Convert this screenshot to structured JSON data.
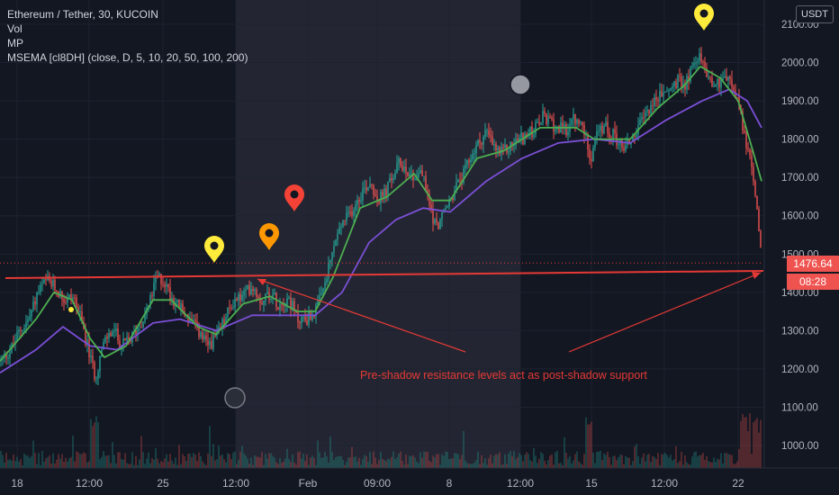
{
  "legend": {
    "symbol": "Ethereum / Tether, 30, KUCOIN",
    "vol": "Vol",
    "mp": "MP",
    "msema": "MSEMA [cl8DH] (close, D, 5, 10, 20, 50, 100, 200)"
  },
  "currency": "USDT",
  "annotation": "Pre-shadow resistance levels act as post-shadow support",
  "price_badge": "1476.64",
  "countdown_badge": "08:28",
  "colors": {
    "background": "#131722",
    "shaded": "#232632",
    "bull": "#26a69a",
    "bear": "#ef5350",
    "ema_fast": "#4caf50",
    "ema_slow": "#7b4fd6",
    "annotation": "#e53935",
    "marker_yellow": "#ffeb3b",
    "marker_orange": "#ff9800",
    "marker_red": "#f44336"
  },
  "chart_data": {
    "type": "candlestick",
    "title": "Ethereum / Tether, 30, KUCOIN",
    "ylabel": "USDT",
    "ylim": [
      940,
      2130
    ],
    "y_ticks": [
      "1000.00",
      "1100.00",
      "1200.00",
      "1300.00",
      "1400.00",
      "1500.00",
      "1600.00",
      "1700.00",
      "1800.00",
      "1900.00",
      "2000.00",
      "2100.00"
    ],
    "x_ticks": [
      "18",
      "12:00",
      "25",
      "12:00",
      "Feb",
      "09:00",
      "8",
      "12:00",
      "15",
      "12:00",
      "22"
    ],
    "last_price": 1476.64,
    "resistance_support_level": 1460,
    "close_path": [
      [
        0,
        1220
      ],
      [
        12,
        1250
      ],
      [
        22,
        1300
      ],
      [
        32,
        1330
      ],
      [
        42,
        1400
      ],
      [
        52,
        1430
      ],
      [
        62,
        1410
      ],
      [
        72,
        1380
      ],
      [
        82,
        1390
      ],
      [
        92,
        1310
      ],
      [
        100,
        1230
      ],
      [
        106,
        1180
      ],
      [
        112,
        1240
      ],
      [
        118,
        1280
      ],
      [
        126,
        1300
      ],
      [
        136,
        1260
      ],
      [
        146,
        1280
      ],
      [
        156,
        1320
      ],
      [
        166,
        1370
      ],
      [
        174,
        1440
      ],
      [
        182,
        1430
      ],
      [
        190,
        1390
      ],
      [
        200,
        1360
      ],
      [
        210,
        1330
      ],
      [
        220,
        1300
      ],
      [
        230,
        1260
      ],
      [
        240,
        1280
      ],
      [
        250,
        1330
      ],
      [
        260,
        1380
      ],
      [
        270,
        1390
      ],
      [
        280,
        1420
      ],
      [
        290,
        1380
      ],
      [
        300,
        1400
      ],
      [
        310,
        1370
      ],
      [
        320,
        1390
      ],
      [
        330,
        1330
      ],
      [
        340,
        1330
      ],
      [
        350,
        1350
      ],
      [
        356,
        1380
      ],
      [
        364,
        1450
      ],
      [
        372,
        1530
      ],
      [
        380,
        1580
      ],
      [
        388,
        1600
      ],
      [
        396,
        1640
      ],
      [
        404,
        1670
      ],
      [
        412,
        1690
      ],
      [
        420,
        1640
      ],
      [
        428,
        1660
      ],
      [
        436,
        1700
      ],
      [
        444,
        1740
      ],
      [
        452,
        1720
      ],
      [
        460,
        1700
      ],
      [
        468,
        1720
      ],
      [
        476,
        1640
      ],
      [
        484,
        1570
      ],
      [
        492,
        1600
      ],
      [
        500,
        1640
      ],
      [
        508,
        1680
      ],
      [
        516,
        1710
      ],
      [
        524,
        1760
      ],
      [
        532,
        1790
      ],
      [
        540,
        1820
      ],
      [
        548,
        1780
      ],
      [
        556,
        1760
      ],
      [
        566,
        1780
      ],
      [
        576,
        1800
      ],
      [
        586,
        1810
      ],
      [
        596,
        1830
      ],
      [
        604,
        1860
      ],
      [
        612,
        1840
      ],
      [
        620,
        1830
      ],
      [
        628,
        1820
      ],
      [
        636,
        1850
      ],
      [
        644,
        1840
      ],
      [
        652,
        1800
      ],
      [
        656,
        1750
      ],
      [
        662,
        1810
      ],
      [
        672,
        1830
      ],
      [
        682,
        1810
      ],
      [
        692,
        1780
      ],
      [
        702,
        1800
      ],
      [
        712,
        1840
      ],
      [
        720,
        1880
      ],
      [
        728,
        1900
      ],
      [
        736,
        1920
      ],
      [
        744,
        1930
      ],
      [
        752,
        1950
      ],
      [
        760,
        1940
      ],
      [
        768,
        1980
      ],
      [
        774,
        2020
      ],
      [
        780,
        2000
      ],
      [
        788,
        1960
      ],
      [
        796,
        1940
      ],
      [
        804,
        1970
      ],
      [
        810,
        1950
      ],
      [
        816,
        1920
      ],
      [
        822,
        1880
      ],
      [
        828,
        1800
      ],
      [
        834,
        1730
      ],
      [
        838,
        1690
      ],
      [
        842,
        1590
      ],
      [
        846,
        1476.64
      ]
    ],
    "ema_fast": [
      [
        0,
        1220
      ],
      [
        40,
        1330
      ],
      [
        60,
        1400
      ],
      [
        80,
        1380
      ],
      [
        100,
        1280
      ],
      [
        116,
        1230
      ],
      [
        140,
        1260
      ],
      [
        170,
        1380
      ],
      [
        190,
        1380
      ],
      [
        220,
        1310
      ],
      [
        240,
        1290
      ],
      [
        270,
        1370
      ],
      [
        300,
        1390
      ],
      [
        330,
        1350
      ],
      [
        350,
        1350
      ],
      [
        370,
        1440
      ],
      [
        400,
        1620
      ],
      [
        430,
        1650
      ],
      [
        460,
        1710
      ],
      [
        480,
        1640
      ],
      [
        500,
        1640
      ],
      [
        530,
        1750
      ],
      [
        560,
        1770
      ],
      [
        600,
        1830
      ],
      [
        640,
        1830
      ],
      [
        660,
        1800
      ],
      [
        700,
        1800
      ],
      [
        730,
        1880
      ],
      [
        760,
        1940
      ],
      [
        778,
        1990
      ],
      [
        800,
        1960
      ],
      [
        820,
        1900
      ],
      [
        835,
        1780
      ],
      [
        846,
        1690
      ]
    ],
    "ema_slow": [
      [
        0,
        1190
      ],
      [
        40,
        1250
      ],
      [
        70,
        1310
      ],
      [
        100,
        1260
      ],
      [
        130,
        1250
      ],
      [
        170,
        1320
      ],
      [
        200,
        1330
      ],
      [
        240,
        1300
      ],
      [
        280,
        1340
      ],
      [
        320,
        1340
      ],
      [
        350,
        1340
      ],
      [
        380,
        1400
      ],
      [
        410,
        1530
      ],
      [
        440,
        1590
      ],
      [
        470,
        1620
      ],
      [
        500,
        1610
      ],
      [
        540,
        1690
      ],
      [
        580,
        1750
      ],
      [
        620,
        1790
      ],
      [
        660,
        1800
      ],
      [
        700,
        1790
      ],
      [
        740,
        1850
      ],
      [
        780,
        1900
      ],
      [
        810,
        1930
      ],
      [
        830,
        1900
      ],
      [
        846,
        1830
      ]
    ],
    "volume_scale_note": "bottom overlay"
  }
}
